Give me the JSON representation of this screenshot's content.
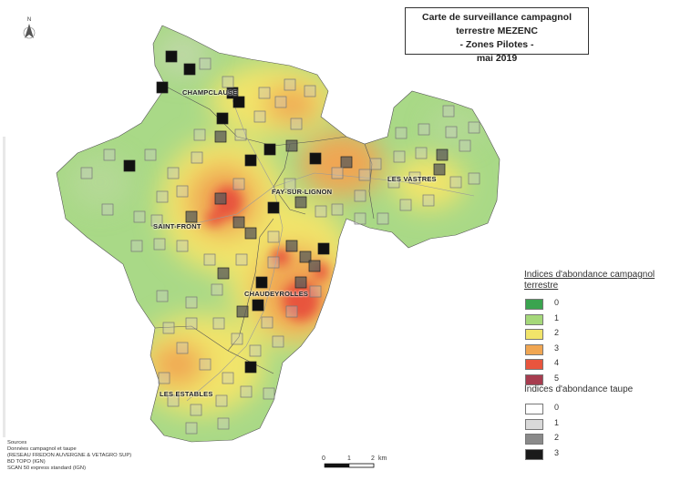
{
  "title": {
    "line1": "Carte de surveillance campagnol terrestre MEZENC",
    "line2": "- Zones Pilotes -",
    "line3": "mai 2019"
  },
  "towns": {
    "champclause": "CHAMPCLAUSE",
    "fay": "FAY-SUR-LIGNON",
    "vastres": "LES VASTRES",
    "saintfront": "SAINT-FRONT",
    "chaudeyrolles": "CHAUDEYROLLES",
    "estables": "LES ESTABLES"
  },
  "legend_campagnol": {
    "title_line1": "Indices d'abondance campagnol",
    "title_line2": "terrestre",
    "items": [
      {
        "label": "0",
        "color": "#3aa44f"
      },
      {
        "label": "1",
        "color": "#a5d87a"
      },
      {
        "label": "2",
        "color": "#f1e46a"
      },
      {
        "label": "3",
        "color": "#f0a652"
      },
      {
        "label": "4",
        "color": "#e8553e"
      },
      {
        "label": "5",
        "color": "#a73c4f"
      }
    ]
  },
  "legend_taupe": {
    "title": "Indices d'abondance taupe",
    "items": [
      {
        "label": "0",
        "color": "#ffffff"
      },
      {
        "label": "1",
        "color": "#d9d9d9"
      },
      {
        "label": "2",
        "color": "#8a8a8a"
      },
      {
        "label": "3",
        "color": "#1a1a1a"
      }
    ]
  },
  "sources": {
    "line1": "Sources",
    "line2": "Données campagnol et taupe",
    "line3": "(RESEAU FREDON AUVERGNE & VETAGRO SUP)",
    "line4": "BD TOPO (IGN)",
    "line5": "SCAN 50 express standard (IGN)"
  },
  "scale": {
    "t0": "0",
    "t1": "1",
    "t2": "2",
    "unit": "km"
  },
  "north": "N"
}
